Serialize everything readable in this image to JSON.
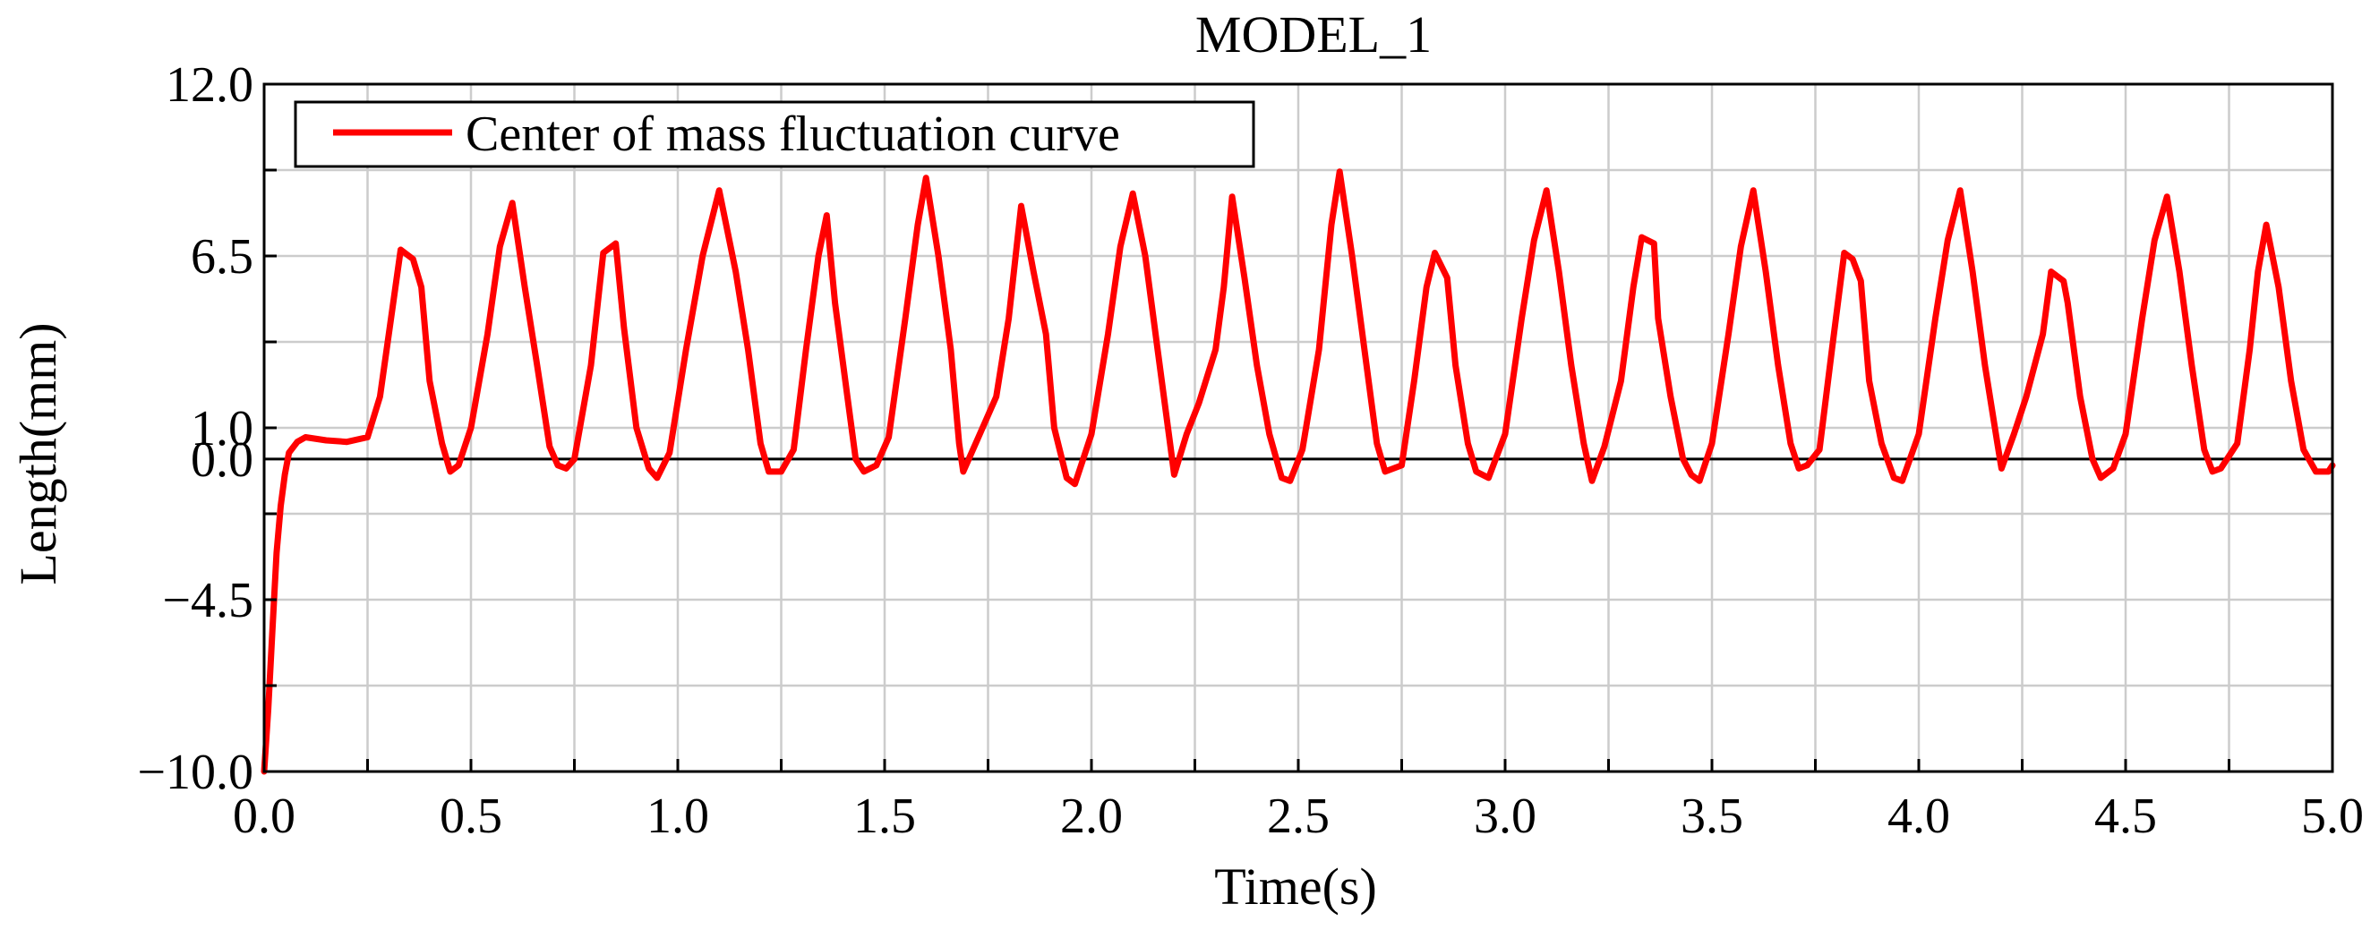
{
  "chart_data": {
    "type": "line",
    "title": "MODEL_1",
    "xlabel": "Time(s)",
    "ylabel": "Length(mm)",
    "xlim": [
      0.0,
      5.0
    ],
    "ylim": [
      -10.0,
      12.0
    ],
    "x_ticks": [
      0.0,
      0.5,
      1.0,
      1.5,
      2.0,
      2.5,
      3.0,
      3.5,
      4.0,
      4.5,
      5.0
    ],
    "x_tick_labels": [
      "0.0",
      "0.5",
      "1.0",
      "1.5",
      "2.0",
      "2.5",
      "3.0",
      "3.5",
      "4.0",
      "4.5",
      "5.0"
    ],
    "y_ticks": [
      -10.0,
      -4.5,
      0.0,
      1.0,
      6.5,
      12.0
    ],
    "y_tick_labels": [
      "−10.0",
      "−4.5",
      "0.0",
      "1.0",
      "6.5",
      "12.0"
    ],
    "x_grid": [
      0.0,
      0.25,
      0.5,
      0.75,
      1.0,
      1.25,
      1.5,
      1.75,
      2.0,
      2.25,
      2.5,
      2.75,
      3.0,
      3.25,
      3.5,
      3.75,
      4.0,
      4.25,
      4.5,
      4.75,
      5.0
    ],
    "y_grid": [
      -10.0,
      -7.25,
      -4.5,
      -1.75,
      1.0,
      3.75,
      6.5,
      9.25,
      12.0
    ],
    "zero_line": 0.0,
    "grid": true,
    "legend_position": "top-left",
    "series": [
      {
        "name": "Center of mass fluctuation curve",
        "color": "#ff0000",
        "points": [
          [
            0.0,
            -10.0
          ],
          [
            0.01,
            -8.0
          ],
          [
            0.02,
            -5.5
          ],
          [
            0.03,
            -3.0
          ],
          [
            0.04,
            -1.5
          ],
          [
            0.05,
            -0.5
          ],
          [
            0.06,
            0.2
          ],
          [
            0.08,
            0.55
          ],
          [
            0.1,
            0.7
          ],
          [
            0.15,
            0.6
          ],
          [
            0.2,
            0.55
          ],
          [
            0.25,
            0.7
          ],
          [
            0.28,
            2.0
          ],
          [
            0.31,
            4.8
          ],
          [
            0.33,
            6.7
          ],
          [
            0.36,
            6.4
          ],
          [
            0.38,
            5.5
          ],
          [
            0.4,
            2.5
          ],
          [
            0.43,
            0.5
          ],
          [
            0.45,
            -0.4
          ],
          [
            0.47,
            -0.2
          ],
          [
            0.5,
            1.0
          ],
          [
            0.54,
            4.0
          ],
          [
            0.57,
            6.8
          ],
          [
            0.6,
            8.2
          ],
          [
            0.63,
            5.5
          ],
          [
            0.66,
            3.0
          ],
          [
            0.69,
            0.4
          ],
          [
            0.71,
            -0.2
          ],
          [
            0.73,
            -0.3
          ],
          [
            0.75,
            0.0
          ],
          [
            0.79,
            3.0
          ],
          [
            0.82,
            6.6
          ],
          [
            0.85,
            6.9
          ],
          [
            0.87,
            4.2
          ],
          [
            0.9,
            1.0
          ],
          [
            0.93,
            -0.3
          ],
          [
            0.95,
            -0.6
          ],
          [
            0.98,
            0.2
          ],
          [
            1.02,
            3.5
          ],
          [
            1.06,
            6.5
          ],
          [
            1.1,
            8.6
          ],
          [
            1.14,
            6.0
          ],
          [
            1.17,
            3.5
          ],
          [
            1.2,
            0.5
          ],
          [
            1.22,
            -0.4
          ],
          [
            1.25,
            -0.4
          ],
          [
            1.28,
            0.3
          ],
          [
            1.31,
            3.5
          ],
          [
            1.34,
            6.5
          ],
          [
            1.36,
            7.8
          ],
          [
            1.38,
            5.0
          ],
          [
            1.41,
            2.0
          ],
          [
            1.43,
            0.0
          ],
          [
            1.45,
            -0.4
          ],
          [
            1.48,
            -0.2
          ],
          [
            1.51,
            0.7
          ],
          [
            1.55,
            4.5
          ],
          [
            1.58,
            7.5
          ],
          [
            1.6,
            9.0
          ],
          [
            1.63,
            6.5
          ],
          [
            1.66,
            3.5
          ],
          [
            1.68,
            0.5
          ],
          [
            1.69,
            -0.4
          ],
          [
            1.73,
            0.8
          ],
          [
            1.77,
            2.0
          ],
          [
            1.8,
            4.5
          ],
          [
            1.83,
            8.1
          ],
          [
            1.86,
            6.0
          ],
          [
            1.89,
            4.0
          ],
          [
            1.91,
            1.0
          ],
          [
            1.94,
            -0.6
          ],
          [
            1.96,
            -0.8
          ],
          [
            2.0,
            0.8
          ],
          [
            2.04,
            4.0
          ],
          [
            2.07,
            6.8
          ],
          [
            2.1,
            8.5
          ],
          [
            2.13,
            6.5
          ],
          [
            2.16,
            3.5
          ],
          [
            2.19,
            0.5
          ],
          [
            2.2,
            -0.5
          ],
          [
            2.23,
            0.8
          ],
          [
            2.26,
            1.8
          ],
          [
            2.3,
            3.5
          ],
          [
            2.32,
            5.5
          ],
          [
            2.34,
            8.4
          ],
          [
            2.37,
            5.8
          ],
          [
            2.4,
            3.0
          ],
          [
            2.43,
            0.8
          ],
          [
            2.46,
            -0.6
          ],
          [
            2.48,
            -0.7
          ],
          [
            2.51,
            0.3
          ],
          [
            2.55,
            3.5
          ],
          [
            2.58,
            7.5
          ],
          [
            2.6,
            9.2
          ],
          [
            2.63,
            6.5
          ],
          [
            2.66,
            3.5
          ],
          [
            2.69,
            0.5
          ],
          [
            2.71,
            -0.4
          ],
          [
            2.75,
            -0.2
          ],
          [
            2.78,
            2.5
          ],
          [
            2.81,
            5.5
          ],
          [
            2.83,
            6.6
          ],
          [
            2.86,
            5.8
          ],
          [
            2.88,
            3.0
          ],
          [
            2.91,
            0.5
          ],
          [
            2.93,
            -0.4
          ],
          [
            2.96,
            -0.6
          ],
          [
            3.0,
            0.8
          ],
          [
            3.04,
            4.5
          ],
          [
            3.07,
            7.0
          ],
          [
            3.1,
            8.6
          ],
          [
            3.13,
            6.0
          ],
          [
            3.16,
            3.0
          ],
          [
            3.19,
            0.5
          ],
          [
            3.21,
            -0.7
          ],
          [
            3.24,
            0.4
          ],
          [
            3.28,
            2.5
          ],
          [
            3.31,
            5.5
          ],
          [
            3.33,
            7.1
          ],
          [
            3.36,
            6.9
          ],
          [
            3.37,
            4.5
          ],
          [
            3.4,
            2.0
          ],
          [
            3.43,
            0.0
          ],
          [
            3.45,
            -0.5
          ],
          [
            3.47,
            -0.7
          ],
          [
            3.5,
            0.5
          ],
          [
            3.54,
            4.0
          ],
          [
            3.57,
            6.8
          ],
          [
            3.6,
            8.6
          ],
          [
            3.63,
            6.0
          ],
          [
            3.66,
            3.0
          ],
          [
            3.69,
            0.5
          ],
          [
            3.71,
            -0.3
          ],
          [
            3.73,
            -0.2
          ],
          [
            3.76,
            0.3
          ],
          [
            3.79,
            3.5
          ],
          [
            3.82,
            6.6
          ],
          [
            3.84,
            6.4
          ],
          [
            3.86,
            5.7
          ],
          [
            3.88,
            2.5
          ],
          [
            3.91,
            0.5
          ],
          [
            3.94,
            -0.6
          ],
          [
            3.96,
            -0.7
          ],
          [
            4.0,
            0.8
          ],
          [
            4.04,
            4.5
          ],
          [
            4.07,
            7.0
          ],
          [
            4.1,
            8.6
          ],
          [
            4.13,
            6.0
          ],
          [
            4.16,
            3.0
          ],
          [
            4.19,
            0.5
          ],
          [
            4.2,
            -0.3
          ],
          [
            4.23,
            0.8
          ],
          [
            4.26,
            2.0
          ],
          [
            4.3,
            4.0
          ],
          [
            4.32,
            6.0
          ],
          [
            4.35,
            5.7
          ],
          [
            4.36,
            5.0
          ],
          [
            4.39,
            2.0
          ],
          [
            4.42,
            0.0
          ],
          [
            4.44,
            -0.6
          ],
          [
            4.47,
            -0.3
          ],
          [
            4.5,
            0.8
          ],
          [
            4.54,
            4.5
          ],
          [
            4.57,
            7.0
          ],
          [
            4.6,
            8.4
          ],
          [
            4.63,
            6.0
          ],
          [
            4.66,
            3.0
          ],
          [
            4.69,
            0.3
          ],
          [
            4.71,
            -0.4
          ],
          [
            4.73,
            -0.3
          ],
          [
            4.77,
            0.5
          ],
          [
            4.8,
            3.5
          ],
          [
            4.82,
            6.0
          ],
          [
            4.84,
            7.5
          ],
          [
            4.87,
            5.5
          ],
          [
            4.9,
            2.5
          ],
          [
            4.93,
            0.3
          ],
          [
            4.96,
            -0.4
          ],
          [
            4.99,
            -0.4
          ],
          [
            5.0,
            -0.2
          ]
        ]
      }
    ]
  }
}
